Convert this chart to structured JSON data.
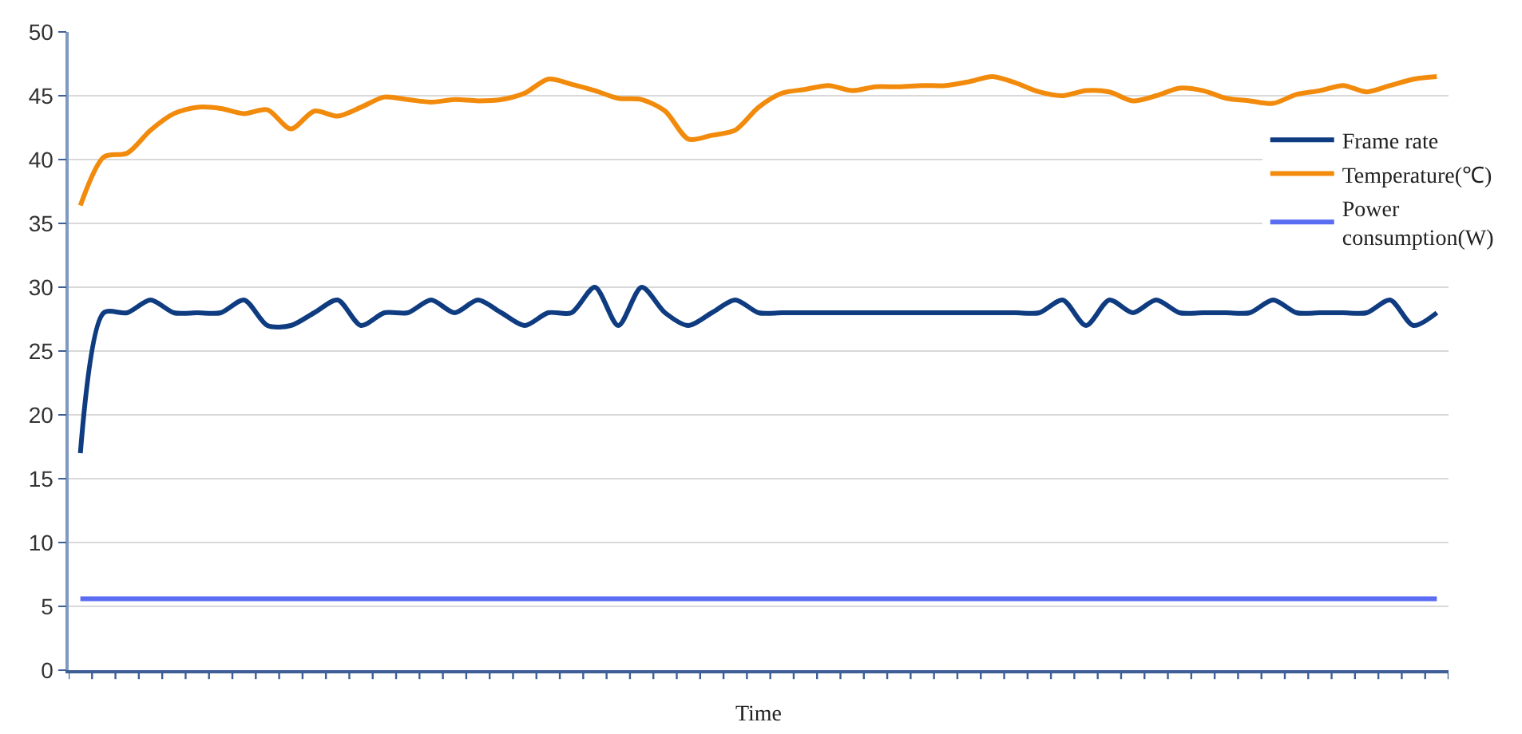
{
  "chart_data": {
    "type": "line",
    "xlabel": "Time",
    "categories": [
      null,
      null,
      null,
      null,
      null,
      null,
      null,
      null,
      null,
      null,
      null,
      null,
      null,
      null,
      null,
      null,
      null,
      null,
      null,
      null,
      null,
      null,
      null,
      null,
      null,
      null,
      null,
      null,
      null,
      null,
      null,
      null,
      null,
      null,
      null,
      null,
      null,
      null,
      null,
      null,
      null,
      null,
      null,
      null,
      null,
      null,
      null,
      null,
      null,
      null,
      null,
      null,
      null,
      null,
      null,
      null,
      null,
      null,
      null
    ],
    "series": [
      {
        "name": "Frame rate",
        "color": "#0f3c80",
        "values": [
          17,
          28,
          28,
          29,
          28,
          28,
          28,
          29,
          27,
          27,
          28,
          29,
          27,
          28,
          28,
          29,
          28,
          29,
          28,
          27,
          28,
          28,
          30,
          27,
          30,
          28,
          27,
          28,
          29,
          28,
          28,
          28,
          28,
          28,
          28,
          28,
          28,
          28,
          28,
          28,
          28,
          28,
          29,
          27,
          29,
          28,
          29,
          28,
          28,
          28,
          28,
          29,
          28,
          28,
          28,
          28,
          29,
          27,
          28
        ]
      },
      {
        "name": "Temperature(℃)",
        "color": "#f28a0c",
        "values": [
          36.4,
          40.2,
          40.5,
          42.3,
          43.6,
          44.1,
          44,
          43.6,
          43.9,
          42.4,
          43.8,
          43.4,
          44.1,
          44.9,
          44.7,
          44.5,
          44.7,
          44.6,
          44.7,
          45.2,
          46.3,
          45.9,
          45.4,
          44.8,
          44.7,
          43.8,
          41.6,
          41.9,
          42.3,
          44.1,
          45.2,
          45.5,
          45.8,
          45.4,
          45.7,
          45.7,
          45.8,
          45.8,
          46.1,
          46.5,
          46,
          45.3,
          45,
          45.4,
          45.3,
          44.6,
          45,
          45.6,
          45.4,
          44.8,
          44.6,
          44.4,
          45.1,
          45.4,
          45.8,
          45.3,
          45.8,
          46.3,
          46.5
        ]
      },
      {
        "name": "Power consumption(W)",
        "color": "#5a6cf2",
        "values": [
          5.6,
          5.6,
          5.6,
          5.6,
          5.6,
          5.6,
          5.6,
          5.6,
          5.6,
          5.6,
          5.6,
          5.6,
          5.6,
          5.6,
          5.6,
          5.6,
          5.6,
          5.6,
          5.6,
          5.6,
          5.6,
          5.6,
          5.6,
          5.6,
          5.6,
          5.6,
          5.6,
          5.6,
          5.6,
          5.6,
          5.6,
          5.6,
          5.6,
          5.6,
          5.6,
          5.6,
          5.6,
          5.6,
          5.6,
          5.6,
          5.6,
          5.6,
          5.6,
          5.6,
          5.6,
          5.6,
          5.6,
          5.6,
          5.6,
          5.6,
          5.6,
          5.6,
          5.6,
          5.6,
          5.6,
          5.6,
          5.6,
          5.6,
          5.6
        ]
      }
    ],
    "ylim": [
      0,
      50
    ],
    "yticks": [
      0,
      5,
      10,
      15,
      20,
      25,
      30,
      35,
      40,
      45,
      50
    ],
    "grid": "y",
    "legend": "right"
  }
}
